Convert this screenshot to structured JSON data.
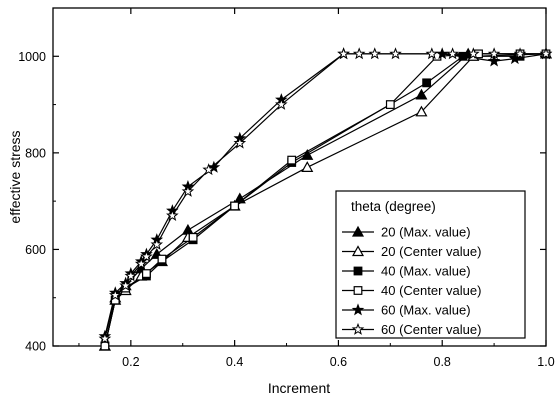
{
  "chart_data": {
    "type": "line",
    "xlabel": "Increment",
    "ylabel": "effective stress",
    "xlim": [
      0.05,
      1.0
    ],
    "ylim": [
      400,
      1100
    ],
    "xticks": [
      0.2,
      0.4,
      0.6,
      0.8,
      1.0
    ],
    "xtick_labels": [
      "0.2",
      "0.4",
      "0.6",
      "0.8",
      "1.0"
    ],
    "yticks": [
      400,
      600,
      800,
      1000
    ],
    "ytick_labels": [
      "400",
      "600",
      "800",
      "1000"
    ],
    "grid": false,
    "legend": {
      "title": "theta (degree)",
      "position": "bottom-right"
    },
    "series": [
      {
        "name": "20 (Max. value)",
        "marker": "filled-triangle",
        "x": [
          0.15,
          0.17,
          0.19,
          0.22,
          0.25,
          0.31,
          0.41,
          0.54,
          0.76,
          0.85,
          1.0
        ],
        "y": [
          400,
          500,
          525,
          560,
          590,
          640,
          705,
          795,
          920,
          1005,
          1005
        ]
      },
      {
        "name": "20 (Center value)",
        "marker": "open-triangle",
        "x": [
          0.15,
          0.17,
          0.19,
          0.22,
          0.26,
          0.31,
          0.4,
          0.54,
          0.76,
          0.86,
          1.0
        ],
        "y": [
          400,
          495,
          515,
          545,
          575,
          625,
          690,
          770,
          885,
          1000,
          1005
        ]
      },
      {
        "name": "40 (Max. value)",
        "marker": "filled-square",
        "x": [
          0.15,
          0.17,
          0.19,
          0.23,
          0.26,
          0.32,
          0.4,
          0.51,
          0.77,
          0.84,
          0.95
        ],
        "y": [
          400,
          495,
          520,
          545,
          575,
          620,
          690,
          780,
          945,
          1000,
          1000
        ]
      },
      {
        "name": "40 (Center value)",
        "marker": "open-square",
        "x": [
          0.15,
          0.17,
          0.19,
          0.23,
          0.26,
          0.32,
          0.4,
          0.51,
          0.7,
          0.79,
          0.87,
          0.95,
          1.0
        ],
        "y": [
          400,
          495,
          520,
          550,
          580,
          625,
          690,
          785,
          900,
          1000,
          1005,
          1005,
          1005
        ]
      },
      {
        "name": "60 (Max. value)",
        "marker": "filled-star",
        "x": [
          0.15,
          0.17,
          0.19,
          0.2,
          0.22,
          0.23,
          0.25,
          0.28,
          0.31,
          0.36,
          0.41,
          0.49,
          0.61,
          0.8,
          0.9,
          0.94,
          1.0
        ],
        "y": [
          420,
          510,
          530,
          550,
          575,
          590,
          620,
          680,
          730,
          770,
          830,
          910,
          1005,
          1005,
          990,
          995,
          1005
        ]
      },
      {
        "name": "60 (Center value)",
        "marker": "open-star",
        "x": [
          0.15,
          0.17,
          0.19,
          0.2,
          0.22,
          0.23,
          0.25,
          0.28,
          0.31,
          0.35,
          0.41,
          0.49,
          0.61,
          0.64,
          0.67,
          0.71,
          0.78,
          0.82,
          0.86,
          0.9,
          0.95,
          1.0
        ],
        "y": [
          415,
          505,
          525,
          545,
          570,
          585,
          610,
          670,
          720,
          765,
          820,
          900,
          1005,
          1005,
          1005,
          1005,
          1005,
          1005,
          1005,
          1005,
          1005,
          1005
        ]
      }
    ]
  }
}
